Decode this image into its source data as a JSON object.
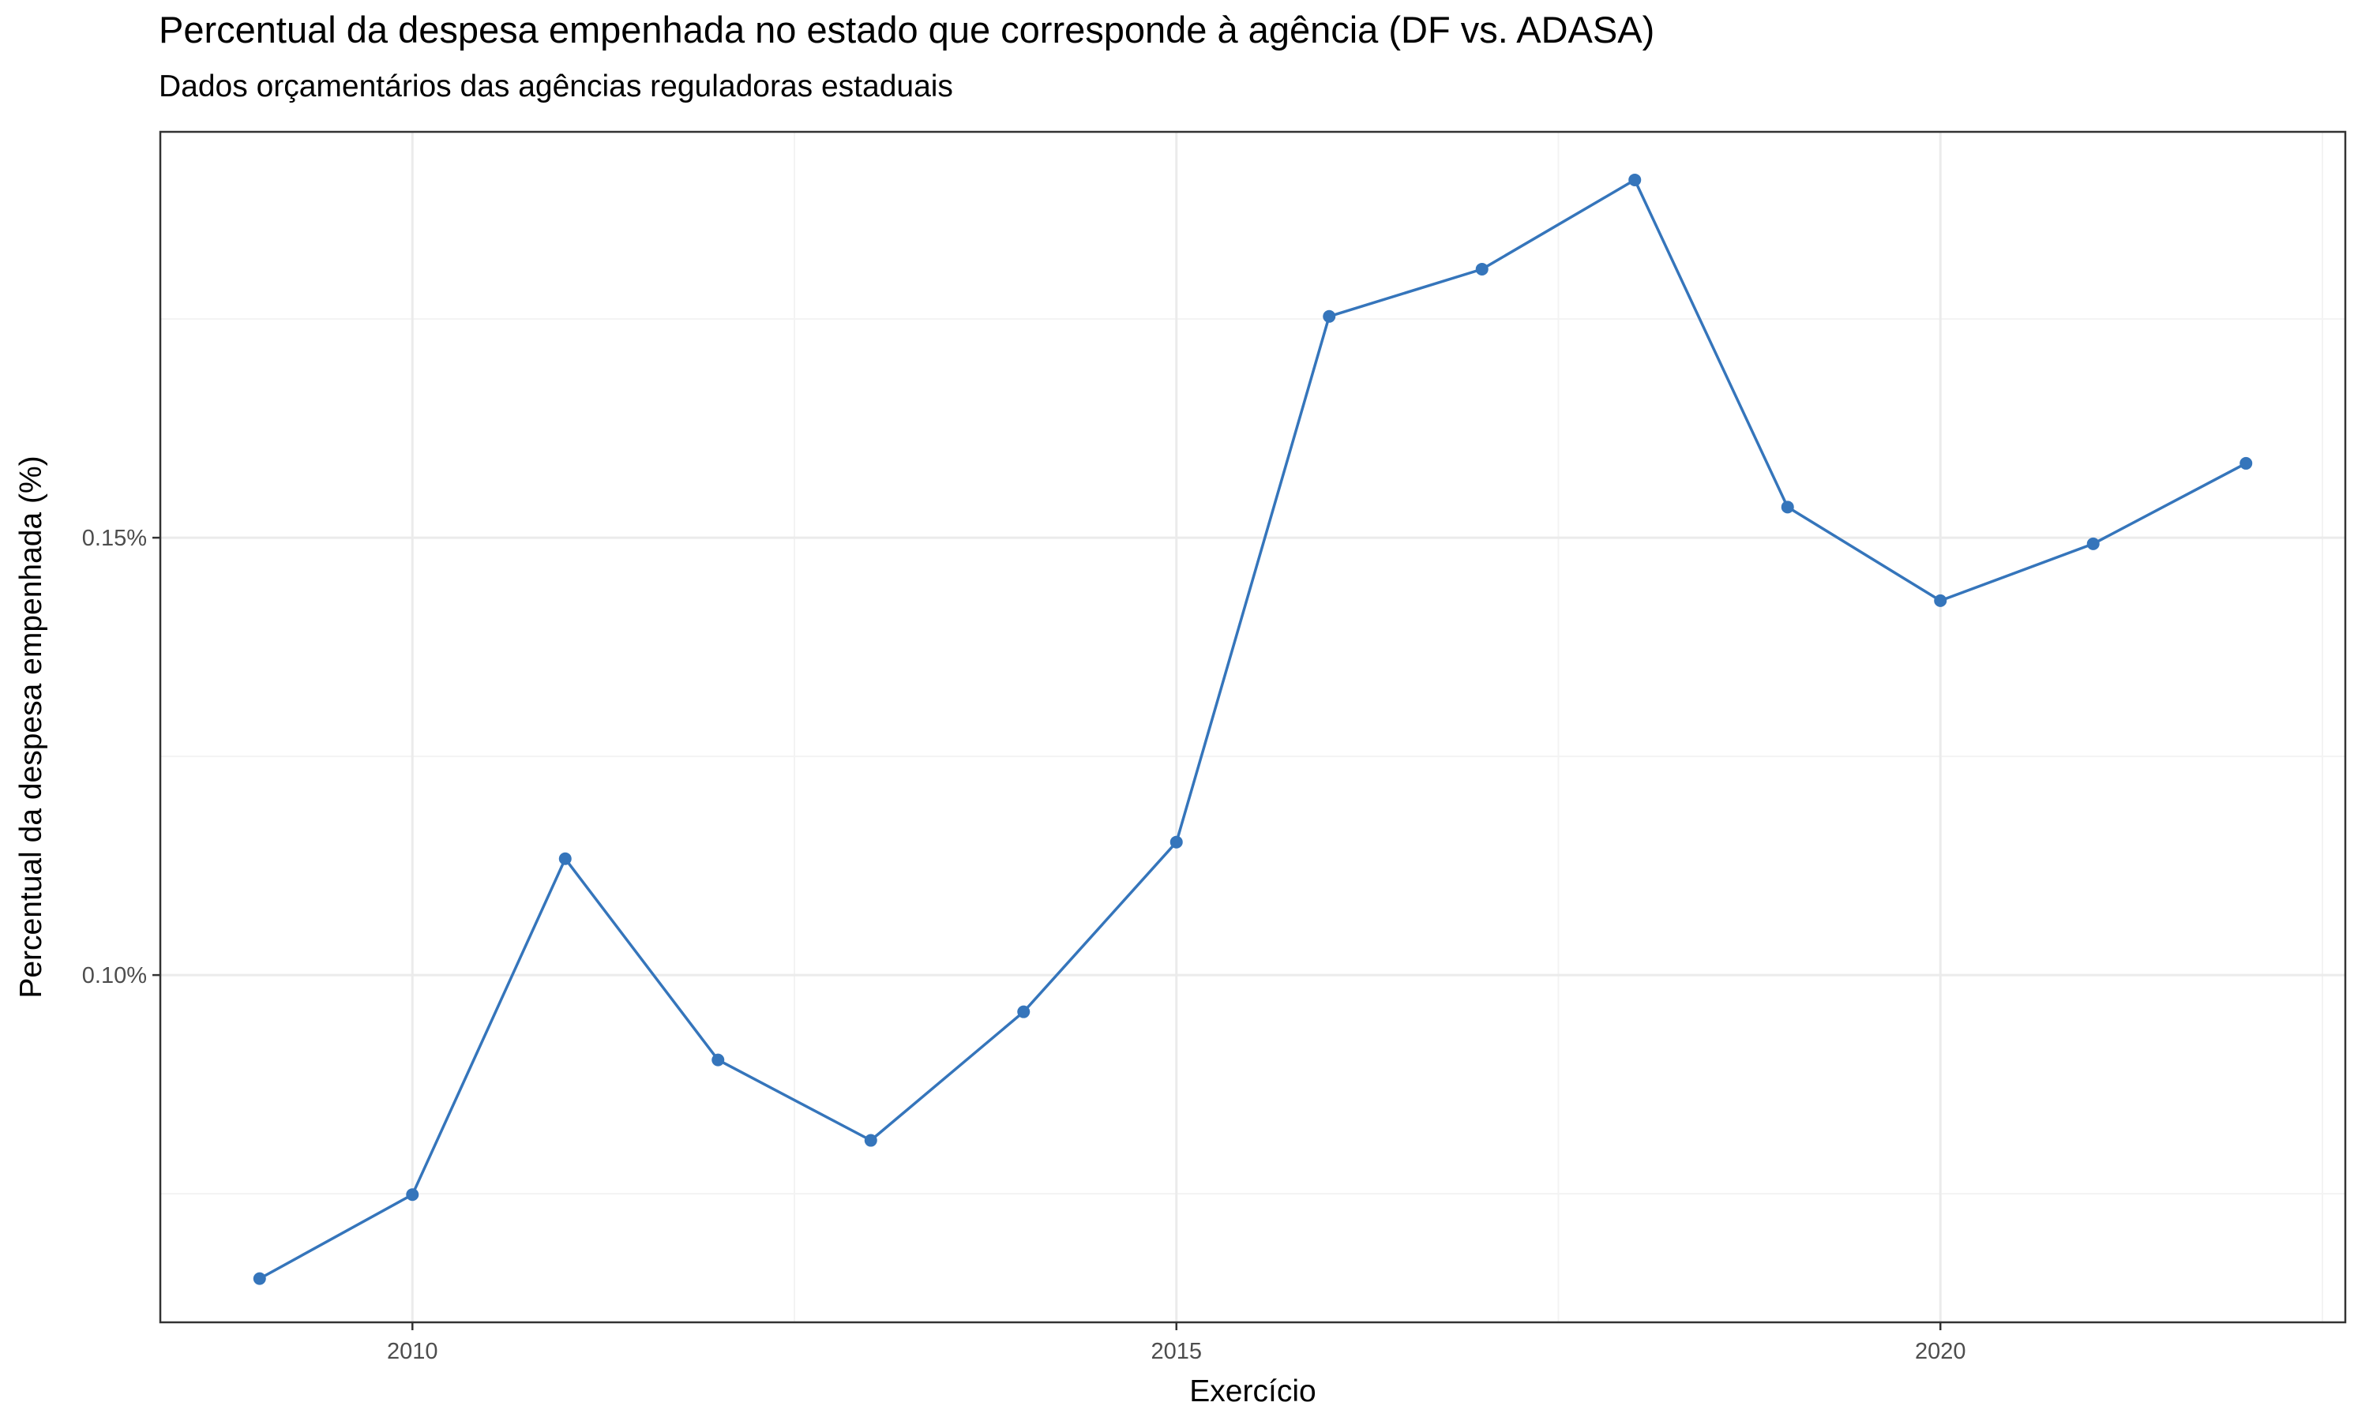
{
  "chart_data": {
    "type": "line",
    "title": "Percentual da despesa empenhada no estado que corresponde à agência (DF vs. ADASA)",
    "subtitle": "Dados orçamentários das agências reguladoras estaduais",
    "xlabel": "Exercício",
    "ylabel": "Percentual da despesa empenhada (%)",
    "x": [
      2009,
      2010,
      2011,
      2012,
      2013,
      2014,
      2015,
      2016,
      2017,
      2018,
      2019,
      2020,
      2021,
      2022
    ],
    "series": [
      {
        "values": [
          0.0653,
          0.0749,
          0.1133,
          0.0903,
          0.0811,
          0.0958,
          0.1152,
          0.1753,
          0.1807,
          0.1909,
          0.1535,
          0.1428,
          0.1493,
          0.1585
        ]
      }
    ],
    "xlim": [
      2008.35,
      2022.65
    ],
    "ylim": [
      0.0603,
      0.1964
    ],
    "x_ticks": [
      {
        "value": 2010,
        "label": "2010"
      },
      {
        "value": 2015,
        "label": "2015"
      },
      {
        "value": 2020,
        "label": "2020"
      }
    ],
    "x_minor": [
      2012.5,
      2017.5,
      2022.5
    ],
    "y_ticks": [
      {
        "value": 0.1,
        "label": "0.10%"
      },
      {
        "value": 0.15,
        "label": "0.15%"
      }
    ],
    "y_minor": [
      0.075,
      0.125,
      0.175
    ],
    "grid": true,
    "legend": "none",
    "colors": {
      "line": "#3575BB",
      "point": "#3575BB",
      "grid_major": "#EBEBEB",
      "grid_minor": "#F3F3F3",
      "panel_border": "#333333"
    }
  }
}
